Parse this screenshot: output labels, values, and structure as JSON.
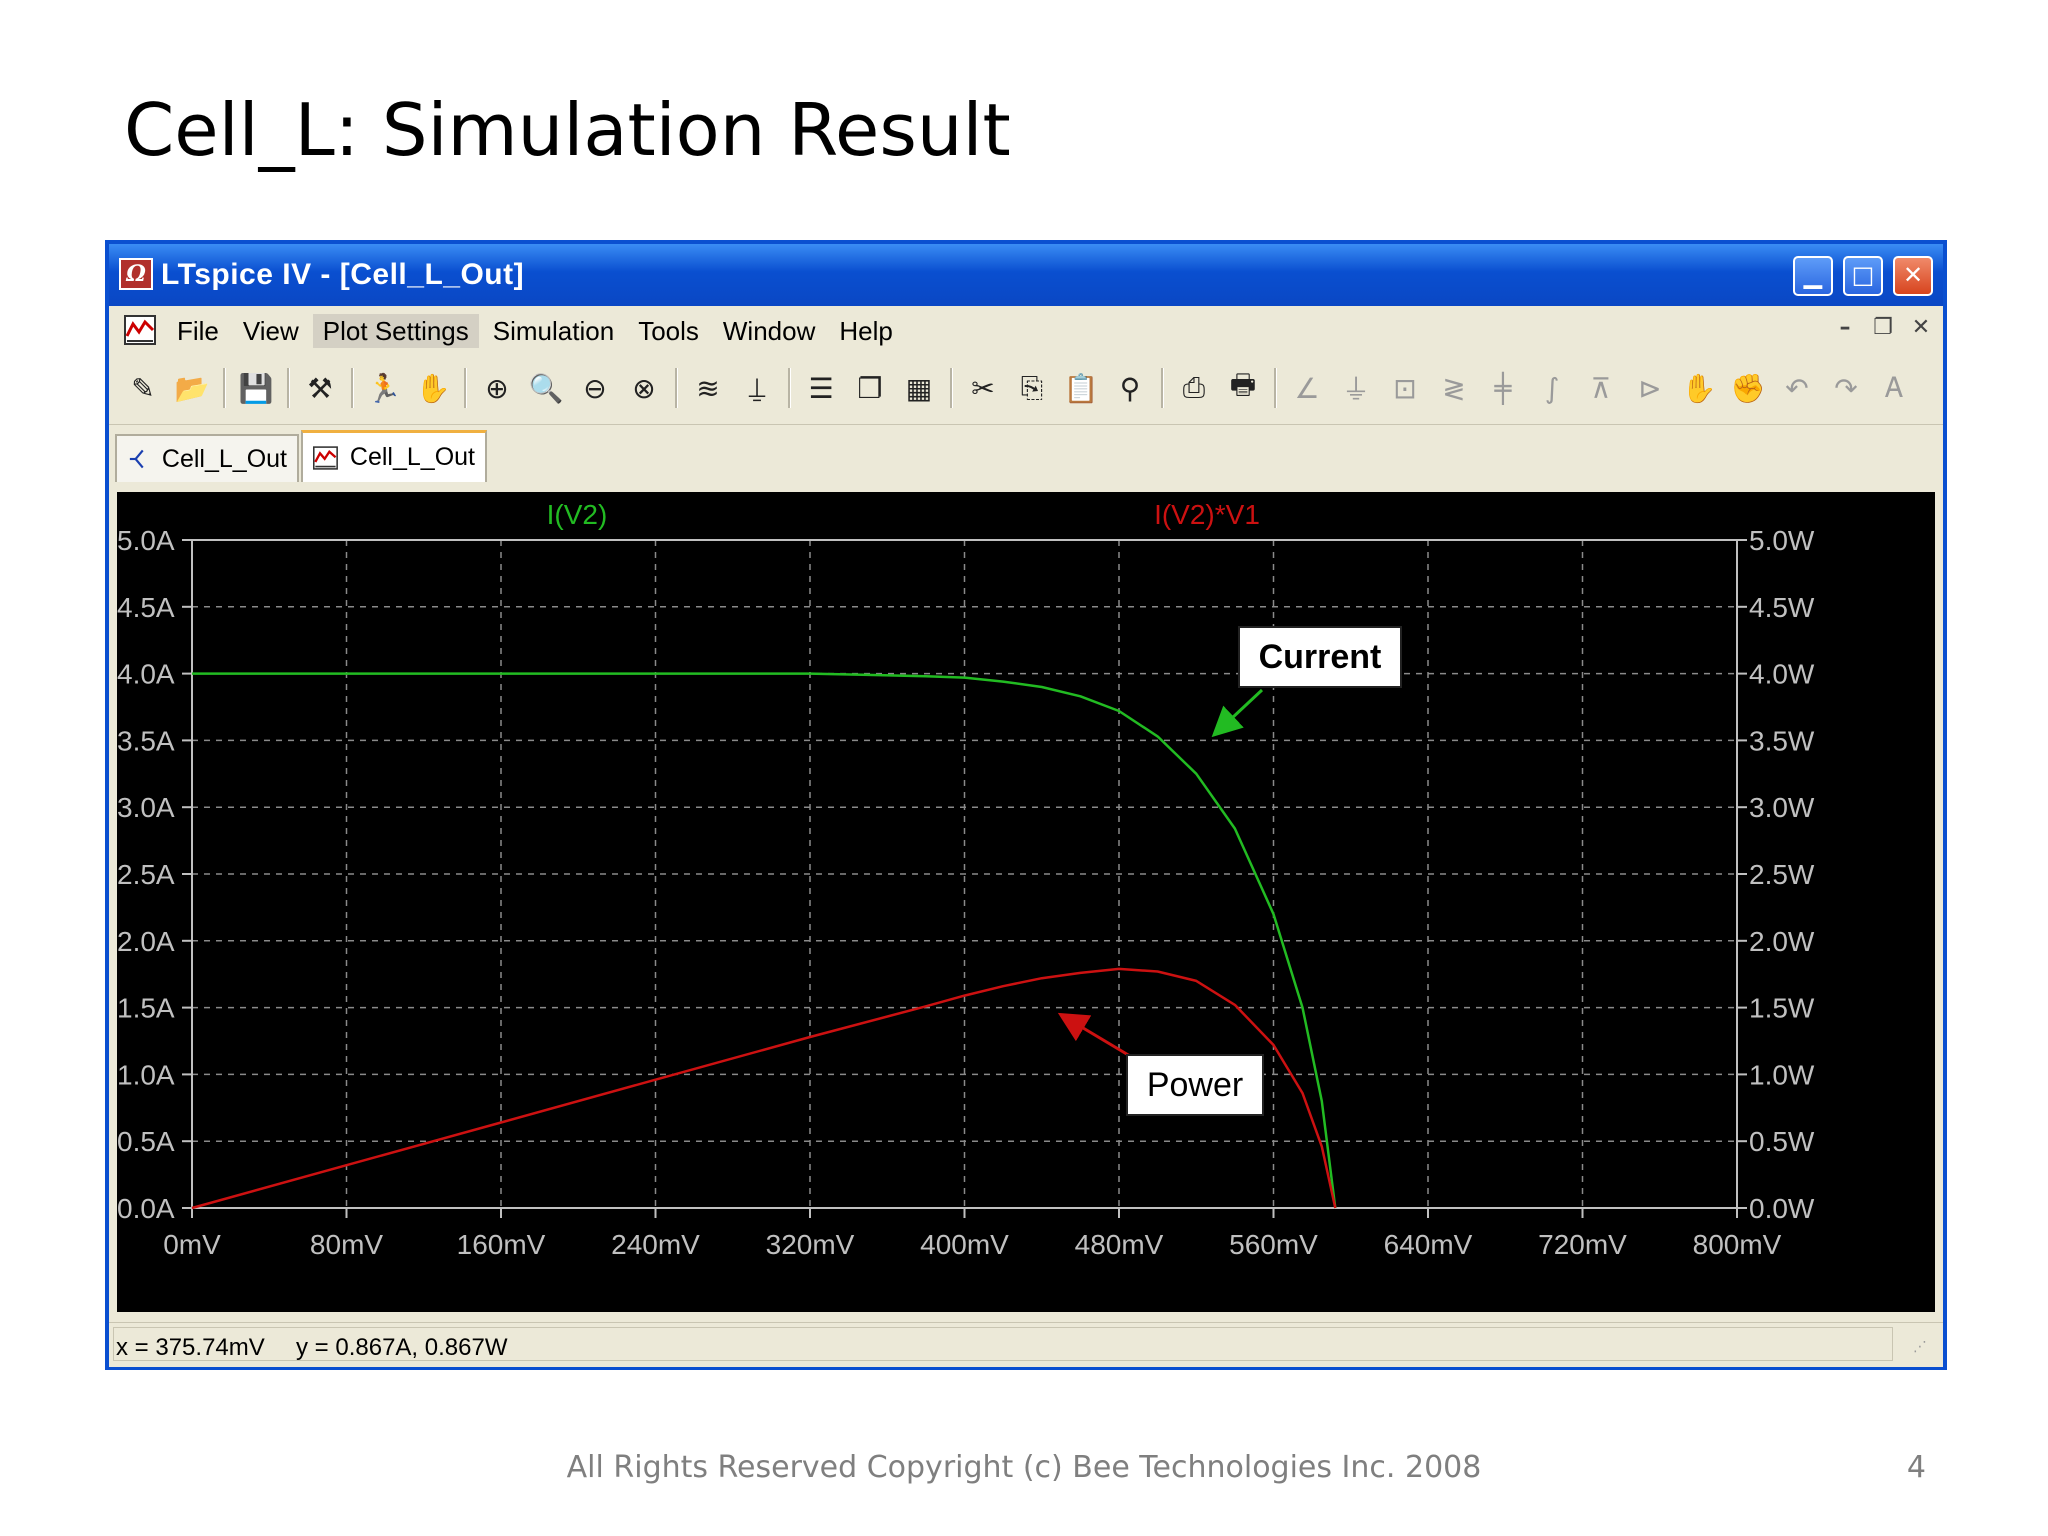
{
  "slide": {
    "title": "Cell_L: Simulation Result",
    "footer": "All Rights Reserved Copyright (c) Bee Technologies Inc. 2008",
    "page_number": "4"
  },
  "window": {
    "app_icon_glyph": "Ω",
    "title": "LTspice IV - [Cell_L_Out]",
    "minimize_glyph": "▁",
    "maximize_glyph": "□",
    "close_glyph": "✕"
  },
  "menu": {
    "items": [
      "File",
      "View",
      "Plot Settings",
      "Simulation",
      "Tools",
      "Window",
      "Help"
    ],
    "active_index": 2,
    "mdi_minimize": "–",
    "mdi_restore": "❐",
    "mdi_close": "✕"
  },
  "toolbar": {
    "groups": [
      [
        {
          "name": "new-schematic-icon",
          "glyph": "✎"
        },
        {
          "name": "open-folder-icon",
          "glyph": "📂"
        }
      ],
      [
        {
          "name": "save-icon",
          "glyph": "💾"
        }
      ],
      [
        {
          "name": "control-panel-icon",
          "glyph": "⚒"
        }
      ],
      [
        {
          "name": "run-icon",
          "glyph": "🏃"
        },
        {
          "name": "halt-icon",
          "glyph": "✋",
          "dim": true
        }
      ],
      [
        {
          "name": "zoom-in-icon",
          "glyph": "⊕"
        },
        {
          "name": "zoom-area-icon",
          "glyph": "🔍"
        },
        {
          "name": "zoom-out-icon",
          "glyph": "⊖"
        },
        {
          "name": "zoom-cancel-icon",
          "glyph": "⊗"
        }
      ],
      [
        {
          "name": "autorange-icon",
          "glyph": "≋"
        },
        {
          "name": "add-trace-icon",
          "glyph": "⍊"
        }
      ],
      [
        {
          "name": "tile-horizontal-icon",
          "glyph": "☰"
        },
        {
          "name": "cascade-icon",
          "glyph": "❐"
        },
        {
          "name": "tile-vertical-icon",
          "glyph": "▦"
        }
      ],
      [
        {
          "name": "cut-icon",
          "glyph": "✂"
        },
        {
          "name": "copy-icon",
          "glyph": "⎘"
        },
        {
          "name": "paste-icon",
          "glyph": "📋",
          "dim": true
        },
        {
          "name": "find-icon",
          "glyph": "⚲"
        }
      ],
      [
        {
          "name": "print-preview-icon",
          "glyph": "⎙"
        },
        {
          "name": "print-icon",
          "glyph": "🖶"
        }
      ],
      [
        {
          "name": "wire-icon",
          "glyph": "∠",
          "dim": true
        },
        {
          "name": "ground-icon",
          "glyph": "⏚",
          "dim": true
        },
        {
          "name": "label-icon",
          "glyph": "⊡",
          "dim": true
        },
        {
          "name": "resistor-icon",
          "glyph": "≷",
          "dim": true
        },
        {
          "name": "capacitor-icon",
          "glyph": "╪",
          "dim": true
        },
        {
          "name": "inductor-icon",
          "glyph": "∫",
          "dim": true
        },
        {
          "name": "diode-icon",
          "glyph": "⊼",
          "dim": true
        },
        {
          "name": "component-icon",
          "glyph": "⊳",
          "dim": true
        },
        {
          "name": "move-icon",
          "glyph": "✋",
          "dim": true
        },
        {
          "name": "drag-icon",
          "glyph": "✊",
          "dim": true
        },
        {
          "name": "undo-icon",
          "glyph": "↶",
          "dim": true
        },
        {
          "name": "redo-icon",
          "glyph": "↷",
          "dim": true
        },
        {
          "name": "text-icon",
          "glyph": "Ꭺ",
          "dim": true
        }
      ]
    ]
  },
  "tabs": [
    {
      "label": "Cell_L_Out",
      "icon": "schematic-icon",
      "active": false
    },
    {
      "label": "Cell_L_Out",
      "icon": "waveform-icon",
      "active": true
    }
  ],
  "status": {
    "x_readout": "x = 375.74mV",
    "y_readout": "y = 0.867A, 0.867W"
  },
  "colors": {
    "window_border": "#0a4fd0",
    "plot_background": "#000000",
    "axis_text": "#c0c0c0",
    "current_trace": "#22bb22",
    "power_trace": "#cc1111",
    "grid": "#8a8a8a"
  },
  "annotations": {
    "current_label": "Current",
    "power_label": "Power"
  },
  "chart_data": {
    "type": "line",
    "title": "",
    "xlabel": "",
    "ylabel": "",
    "x_unit": "mV",
    "xlim": [
      0,
      800
    ],
    "x_ticks": [
      0,
      80,
      160,
      240,
      320,
      400,
      480,
      560,
      640,
      720,
      800
    ],
    "x_tick_labels": [
      "0mV",
      "80mV",
      "160mV",
      "240mV",
      "320mV",
      "400mV",
      "480mV",
      "560mV",
      "640mV",
      "720mV",
      "800mV"
    ],
    "ylim_left": [
      0,
      5.0
    ],
    "y_left_ticks": [
      0,
      0.5,
      1.0,
      1.5,
      2.0,
      2.5,
      3.0,
      3.5,
      4.0,
      4.5,
      5.0
    ],
    "y_left_tick_labels": [
      "0.0A",
      "0.5A",
      "1.0A",
      "1.5A",
      "2.0A",
      "2.5A",
      "3.0A",
      "3.5A",
      "4.0A",
      "4.5A",
      "5.0A"
    ],
    "ylim_right": [
      0,
      5.0
    ],
    "y_right_ticks": [
      0,
      0.5,
      1.0,
      1.5,
      2.0,
      2.5,
      3.0,
      3.5,
      4.0,
      4.5,
      5.0
    ],
    "y_right_tick_labels": [
      "0.0W",
      "0.5W",
      "1.0W",
      "1.5W",
      "2.0W",
      "2.5W",
      "3.0W",
      "3.5W",
      "4.0W",
      "4.5W",
      "5.0W"
    ],
    "grid": true,
    "series": [
      {
        "name": "I(V2)",
        "axis": "left",
        "color": "#22bb22",
        "x": [
          0,
          100,
          200,
          300,
          320,
          350,
          380,
          400,
          420,
          440,
          460,
          480,
          500,
          520,
          540,
          560,
          575,
          585,
          592
        ],
        "y": [
          4.0,
          4.0,
          4.0,
          4.0,
          4.0,
          3.99,
          3.98,
          3.97,
          3.94,
          3.9,
          3.83,
          3.72,
          3.53,
          3.25,
          2.84,
          2.2,
          1.5,
          0.8,
          0.0
        ]
      },
      {
        "name": "I(V2)*V1",
        "axis": "right",
        "color": "#cc1111",
        "x": [
          0,
          80,
          160,
          240,
          320,
          380,
          400,
          420,
          440,
          460,
          480,
          500,
          520,
          540,
          560,
          575,
          585,
          592
        ],
        "y": [
          0.0,
          0.32,
          0.64,
          0.96,
          1.28,
          1.51,
          1.59,
          1.66,
          1.72,
          1.76,
          1.79,
          1.77,
          1.7,
          1.52,
          1.22,
          0.86,
          0.46,
          0.0
        ]
      }
    ],
    "annotations": [
      {
        "text": "Current",
        "x": 493,
        "y": 3.65,
        "axis": "left"
      },
      {
        "text": "Power",
        "x": 420,
        "y": 1.66,
        "axis": "right"
      }
    ]
  }
}
